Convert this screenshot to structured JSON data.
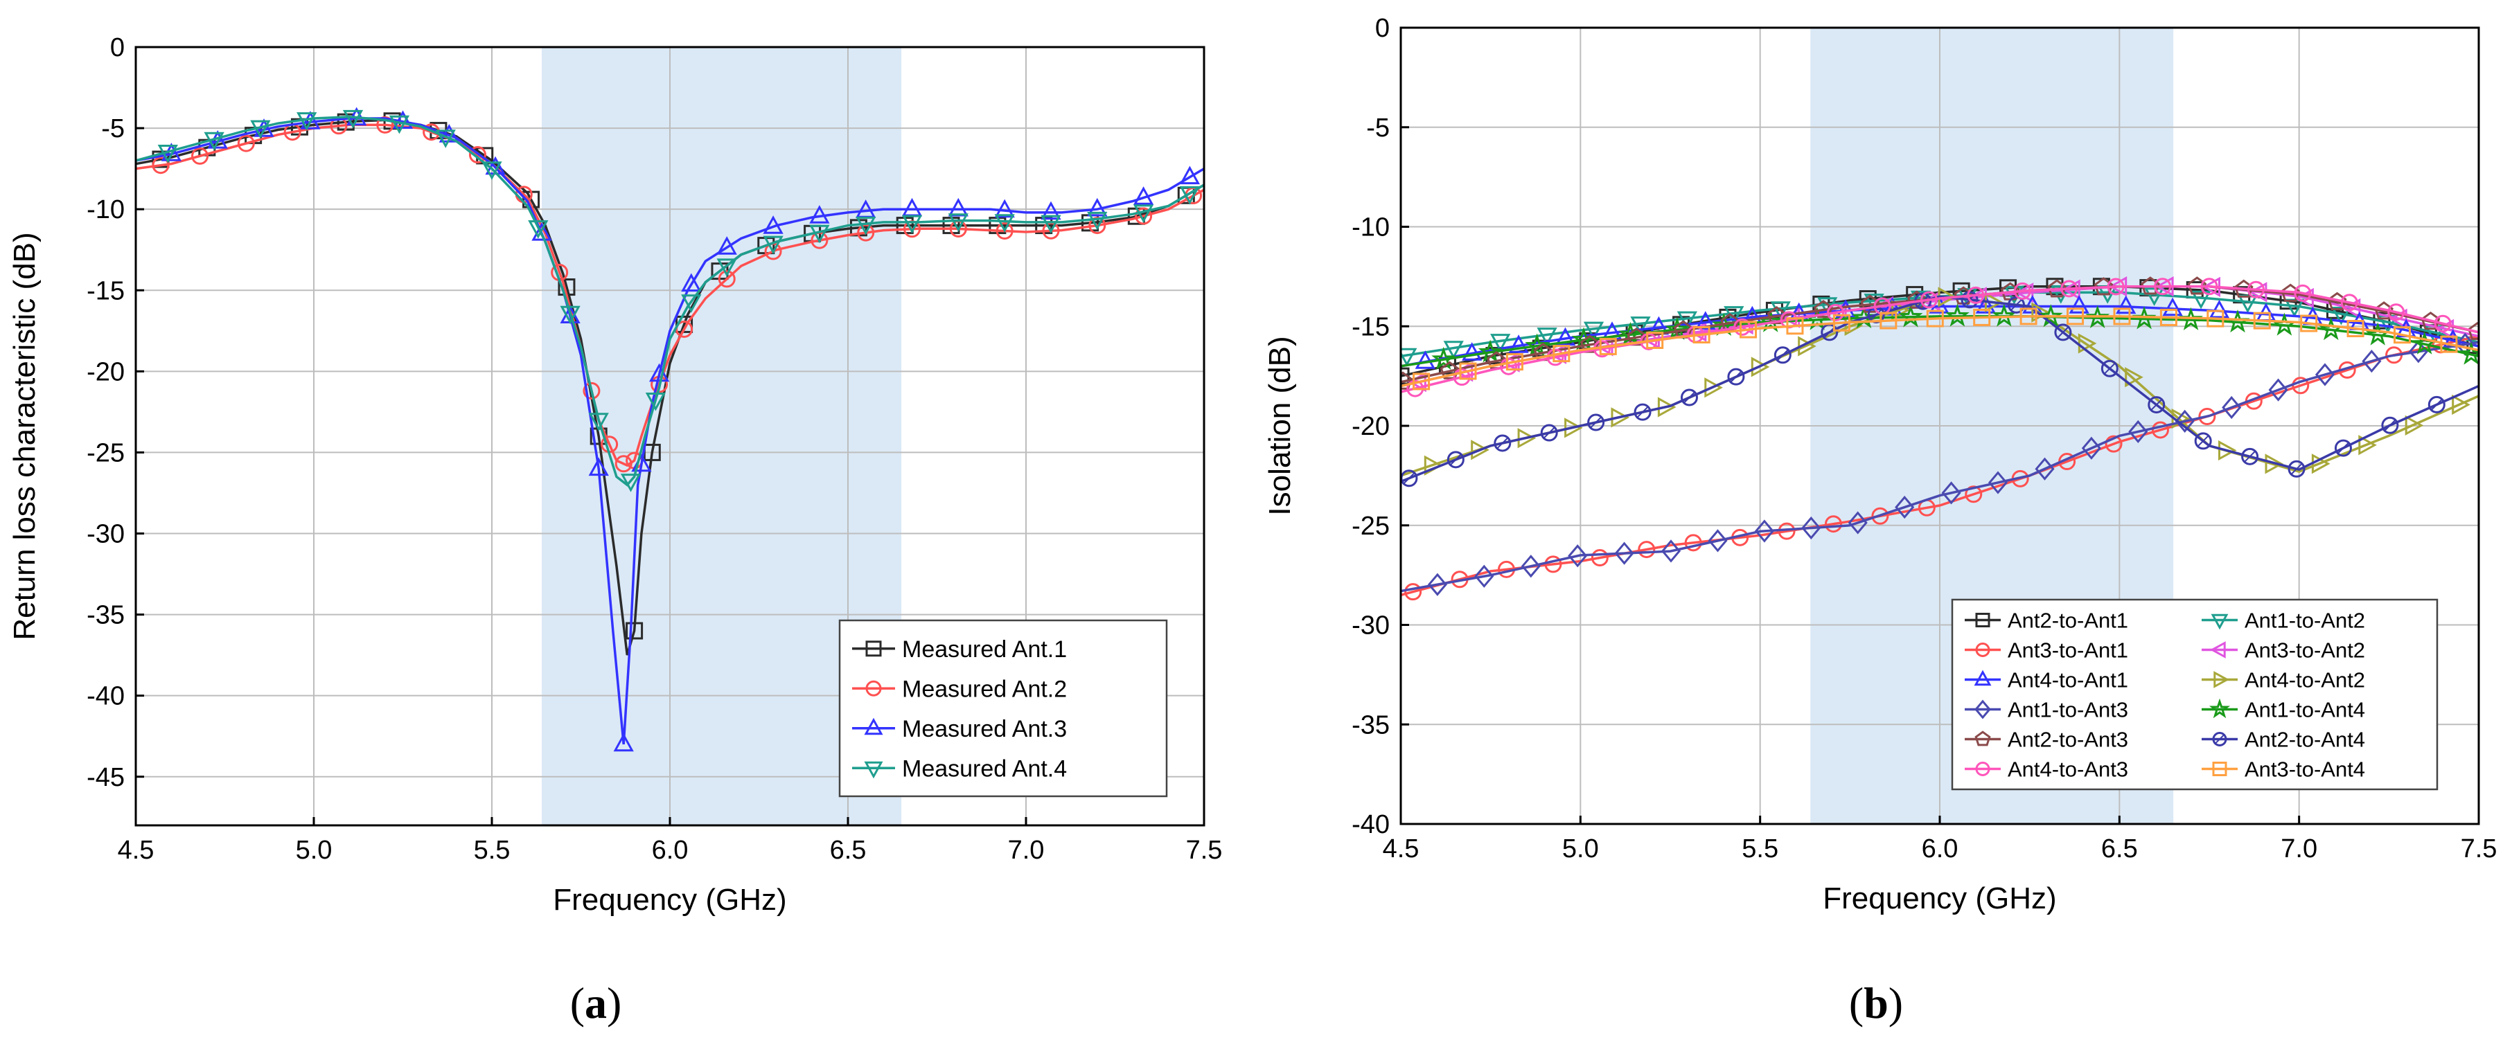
{
  "chart_data": [
    {
      "type": "line",
      "panel_label": {
        "open": "(",
        "letter": "a",
        "close": ")"
      },
      "xlabel": "Frequency (GHz)",
      "ylabel": "Return loss characteristic (dB)",
      "xlim": [
        4.5,
        7.5
      ],
      "ylim": [
        -48,
        0
      ],
      "xticks": [
        4.5,
        5.0,
        5.5,
        6.0,
        6.5,
        7.0,
        7.5
      ],
      "xtick_labels": [
        "4.5",
        "5.0",
        "5.5",
        "6.0",
        "6.5",
        "7.0",
        "7.5"
      ],
      "yticks": [
        0,
        -5,
        -10,
        -15,
        -20,
        -25,
        -30,
        -35,
        -40,
        -45
      ],
      "ytick_labels": [
        "0",
        "-5",
        "-10",
        "-15",
        "-20",
        "-25",
        "-30",
        "-35",
        "-40",
        "-45"
      ],
      "grid": true,
      "shaded_band": [
        5.64,
        6.65
      ],
      "band_color": "#dbe9f6",
      "legend_position": "bottom-right",
      "series": [
        {
          "name": "Measured Ant.1",
          "color": "#2b2b2b",
          "marker": "square",
          "x": [
            4.5,
            4.6,
            4.7,
            4.8,
            4.9,
            5.0,
            5.1,
            5.2,
            5.3,
            5.4,
            5.5,
            5.6,
            5.65,
            5.7,
            5.75,
            5.8,
            5.85,
            5.88,
            5.9,
            5.92,
            5.95,
            6.0,
            6.05,
            6.1,
            6.2,
            6.3,
            6.4,
            6.5,
            6.6,
            6.7,
            6.8,
            6.9,
            7.0,
            7.1,
            7.2,
            7.3,
            7.4,
            7.5
          ],
          "y": [
            -7.2,
            -6.8,
            -6.2,
            -5.6,
            -5.1,
            -4.8,
            -4.6,
            -4.5,
            -4.8,
            -5.5,
            -7.0,
            -9.0,
            -11.0,
            -14.0,
            -18.0,
            -24.0,
            -32.0,
            -37.5,
            -36.0,
            -30.0,
            -25.0,
            -19.5,
            -16.5,
            -14.5,
            -12.8,
            -12.0,
            -11.5,
            -11.2,
            -11.0,
            -11.0,
            -11.0,
            -11.0,
            -11.0,
            -11.0,
            -10.8,
            -10.5,
            -9.8,
            -8.5
          ],
          "marker_x": [
            4.57,
            4.7,
            4.83,
            4.96,
            5.09,
            5.22,
            5.35,
            5.48,
            5.61,
            5.71,
            5.8,
            5.9,
            5.95,
            6.04,
            6.14,
            6.27,
            6.4,
            6.53,
            6.66,
            6.79,
            6.92,
            7.05,
            7.18,
            7.31,
            7.45
          ]
        },
        {
          "name": "Measured Ant.2",
          "color": "#ff5050",
          "marker": "circle",
          "x": [
            4.5,
            4.6,
            4.7,
            4.8,
            4.9,
            5.0,
            5.1,
            5.2,
            5.3,
            5.4,
            5.5,
            5.6,
            5.65,
            5.7,
            5.75,
            5.8,
            5.85,
            5.88,
            5.9,
            5.92,
            5.95,
            6.0,
            6.05,
            6.1,
            6.2,
            6.3,
            6.4,
            6.5,
            6.6,
            6.7,
            6.8,
            6.9,
            7.0,
            7.1,
            7.2,
            7.3,
            7.4,
            7.5
          ],
          "y": [
            -7.5,
            -7.2,
            -6.6,
            -6.0,
            -5.4,
            -5.0,
            -4.8,
            -4.8,
            -5.0,
            -5.8,
            -7.2,
            -9.3,
            -11.5,
            -14.5,
            -18.5,
            -23.0,
            -25.5,
            -25.8,
            -25.5,
            -24.0,
            -22.0,
            -19.0,
            -17.0,
            -15.5,
            -13.5,
            -12.5,
            -12.0,
            -11.6,
            -11.3,
            -11.2,
            -11.2,
            -11.3,
            -11.4,
            -11.3,
            -11.0,
            -10.6,
            -10.0,
            -8.8
          ],
          "marker_x": [
            4.57,
            4.68,
            4.81,
            4.94,
            5.07,
            5.2,
            5.33,
            5.46,
            5.59,
            5.69,
            5.78,
            5.83,
            5.87,
            5.9,
            5.97,
            6.04,
            6.16,
            6.29,
            6.42,
            6.55,
            6.68,
            6.81,
            6.94,
            7.07,
            7.2,
            7.33,
            7.47
          ]
        },
        {
          "name": "Measured Ant.3",
          "color": "#3333ff",
          "marker": "triangle-up",
          "x": [
            4.5,
            4.6,
            4.7,
            4.8,
            4.9,
            5.0,
            5.1,
            5.2,
            5.3,
            5.4,
            5.5,
            5.6,
            5.65,
            5.7,
            5.75,
            5.8,
            5.84,
            5.87,
            5.89,
            5.91,
            5.95,
            6.0,
            6.05,
            6.1,
            6.2,
            6.3,
            6.4,
            6.5,
            6.6,
            6.7,
            6.8,
            6.9,
            7.0,
            7.1,
            7.2,
            7.3,
            7.4,
            7.5
          ],
          "y": [
            -7.0,
            -6.6,
            -6.0,
            -5.4,
            -4.9,
            -4.6,
            -4.4,
            -4.4,
            -4.8,
            -5.6,
            -7.2,
            -9.5,
            -12.0,
            -15.0,
            -19.0,
            -26.0,
            -36.0,
            -43.0,
            -36.0,
            -27.0,
            -22.0,
            -17.5,
            -15.0,
            -13.2,
            -11.8,
            -11.0,
            -10.5,
            -10.2,
            -10.0,
            -10.0,
            -10.0,
            -10.0,
            -10.2,
            -10.2,
            -10.0,
            -9.5,
            -8.8,
            -7.5
          ],
          "marker_x": [
            4.6,
            4.73,
            4.86,
            4.99,
            5.12,
            5.25,
            5.38,
            5.51,
            5.64,
            5.72,
            5.8,
            5.87,
            5.92,
            5.97,
            6.06,
            6.16,
            6.29,
            6.42,
            6.55,
            6.68,
            6.81,
            6.94,
            7.07,
            7.2,
            7.33,
            7.46
          ]
        },
        {
          "name": "Measured Ant.4",
          "color": "#1f9e8e",
          "marker": "triangle-down",
          "x": [
            4.5,
            4.6,
            4.7,
            4.8,
            4.9,
            5.0,
            5.1,
            5.2,
            5.3,
            5.4,
            5.5,
            5.6,
            5.65,
            5.7,
            5.75,
            5.8,
            5.85,
            5.88,
            5.9,
            5.93,
            5.97,
            6.0,
            6.05,
            6.1,
            6.2,
            6.3,
            6.4,
            6.5,
            6.6,
            6.7,
            6.8,
            6.9,
            7.0,
            7.1,
            7.2,
            7.3,
            7.4,
            7.5
          ],
          "y": [
            -7.0,
            -6.4,
            -5.8,
            -5.2,
            -4.7,
            -4.4,
            -4.3,
            -4.5,
            -4.9,
            -5.8,
            -7.5,
            -9.8,
            -12.0,
            -15.0,
            -18.5,
            -23.0,
            -26.5,
            -27.0,
            -26.5,
            -24.0,
            -21.0,
            -18.0,
            -16.0,
            -14.5,
            -12.8,
            -12.0,
            -11.5,
            -11.0,
            -10.8,
            -10.8,
            -10.7,
            -10.7,
            -10.8,
            -10.8,
            -10.6,
            -10.3,
            -9.8,
            -8.5
          ],
          "marker_x": [
            4.59,
            4.72,
            4.85,
            4.98,
            5.11,
            5.24,
            5.37,
            5.5,
            5.63,
            5.72,
            5.8,
            5.89,
            5.96,
            6.06,
            6.16,
            6.29,
            6.42,
            6.55,
            6.68,
            6.81,
            6.94,
            7.07,
            7.2,
            7.33,
            7.46
          ]
        }
      ]
    },
    {
      "type": "line",
      "panel_label": {
        "open": "(",
        "letter": "b",
        "close": ")"
      },
      "xlabel": "Frequency (GHz)",
      "ylabel": "Isolation (dB)",
      "xlim": [
        4.5,
        7.5
      ],
      "ylim": [
        -40,
        0
      ],
      "xticks": [
        4.5,
        5.0,
        5.5,
        6.0,
        6.5,
        7.0,
        7.5
      ],
      "xtick_labels": [
        "4.5",
        "5.0",
        "5.5",
        "6.0",
        "6.5",
        "7.0",
        "7.5"
      ],
      "yticks": [
        0,
        -5,
        -10,
        -15,
        -20,
        -25,
        -30,
        -35,
        -40
      ],
      "ytick_labels": [
        "0",
        "-5",
        "-10",
        "-15",
        "-20",
        "-25",
        "-30",
        "-35",
        "-40"
      ],
      "grid": true,
      "shaded_band": [
        5.64,
        6.65
      ],
      "band_color": "#dbe9f6",
      "legend_position": "bottom-right",
      "legend_columns": 2,
      "series": [
        {
          "name": "Ant2-to-Ant1",
          "color": "#2b2b2b",
          "marker": "square",
          "x": [
            4.5,
            4.75,
            5.0,
            5.25,
            5.5,
            5.75,
            6.0,
            6.25,
            6.5,
            6.75,
            7.0,
            7.25,
            7.5
          ],
          "y": [
            -17.5,
            -16.5,
            -15.8,
            -15.0,
            -14.3,
            -13.7,
            -13.3,
            -13.0,
            -13.0,
            -13.2,
            -13.8,
            -14.8,
            -16.0
          ],
          "marker_step": 0.13
        },
        {
          "name": "Ant1-to-Ant2",
          "color": "#1f9e8e",
          "marker": "triangle-down",
          "x": [
            4.5,
            4.75,
            5.0,
            5.25,
            5.5,
            5.75,
            6.0,
            6.25,
            6.5,
            6.75,
            7.0,
            7.25,
            7.5
          ],
          "y": [
            -16.5,
            -15.8,
            -15.2,
            -14.7,
            -14.2,
            -13.8,
            -13.5,
            -13.3,
            -13.3,
            -13.6,
            -14.0,
            -14.8,
            -15.8
          ],
          "marker_step": 0.13
        },
        {
          "name": "Ant3-to-Ant1",
          "color": "#ff5050",
          "marker": "circle",
          "x": [
            4.5,
            4.75,
            5.0,
            5.25,
            5.5,
            5.75,
            6.0,
            6.25,
            6.5,
            6.75,
            7.0,
            7.25,
            7.5
          ],
          "y": [
            -28.5,
            -27.3,
            -26.8,
            -26.0,
            -25.5,
            -24.8,
            -24.0,
            -22.5,
            -20.8,
            -19.5,
            -18.0,
            -16.5,
            -15.5
          ],
          "marker_step": 0.13
        },
        {
          "name": "Ant3-to-Ant2",
          "color": "#e055e0",
          "marker": "triangle-left",
          "x": [
            4.5,
            4.75,
            5.0,
            5.25,
            5.5,
            5.75,
            6.0,
            6.25,
            6.5,
            6.75,
            7.0,
            7.25,
            7.5
          ],
          "y": [
            -18.0,
            -17.0,
            -16.2,
            -15.5,
            -14.8,
            -14.2,
            -13.7,
            -13.3,
            -13.0,
            -13.0,
            -13.5,
            -14.5,
            -15.5
          ],
          "marker_step": 0.13
        },
        {
          "name": "Ant4-to-Ant1",
          "color": "#3333ff",
          "marker": "triangle-up",
          "x": [
            4.5,
            4.75,
            5.0,
            5.25,
            5.5,
            5.75,
            6.0,
            6.25,
            6.5,
            6.75,
            7.0,
            7.25,
            7.5
          ],
          "y": [
            -17.0,
            -16.2,
            -15.5,
            -15.0,
            -14.5,
            -14.2,
            -14.0,
            -14.0,
            -14.0,
            -14.2,
            -14.5,
            -15.0,
            -16.0
          ],
          "marker_step": 0.13
        },
        {
          "name": "Ant4-to-Ant2",
          "color": "#a8a83a",
          "marker": "triangle-right",
          "x": [
            4.5,
            4.75,
            5.0,
            5.25,
            5.5,
            5.75,
            6.0,
            6.25,
            6.5,
            6.75,
            7.0,
            7.25,
            7.5
          ],
          "y": [
            -22.5,
            -21.0,
            -20.0,
            -19.0,
            -17.0,
            -15.0,
            -13.5,
            -14.0,
            -17.0,
            -21.0,
            -22.3,
            -20.5,
            -18.5
          ],
          "marker_step": 0.13
        },
        {
          "name": "Ant1-to-Ant3",
          "color": "#4a4ab0",
          "marker": "diamond",
          "x": [
            4.5,
            4.75,
            5.0,
            5.25,
            5.5,
            5.75,
            6.0,
            6.25,
            6.5,
            6.75,
            7.0,
            7.25,
            7.5
          ],
          "y": [
            -28.3,
            -27.5,
            -26.5,
            -26.3,
            -25.3,
            -25.0,
            -23.5,
            -22.5,
            -20.5,
            -19.5,
            -17.8,
            -16.5,
            -15.8
          ],
          "marker_step": 0.13
        },
        {
          "name": "Ant1-to-Ant4",
          "color": "#1a9a1a",
          "marker": "star",
          "x": [
            4.5,
            4.75,
            5.0,
            5.25,
            5.5,
            5.75,
            6.0,
            6.25,
            6.5,
            6.75,
            7.0,
            7.25,
            7.5
          ],
          "y": [
            -17.0,
            -16.3,
            -15.7,
            -15.2,
            -14.8,
            -14.6,
            -14.5,
            -14.5,
            -14.6,
            -14.7,
            -15.0,
            -15.5,
            -16.5
          ],
          "marker_step": 0.13
        },
        {
          "name": "Ant2-to-Ant3",
          "color": "#8b4a4a",
          "marker": "pentagon",
          "x": [
            4.5,
            4.75,
            5.0,
            5.25,
            5.5,
            5.75,
            6.0,
            6.25,
            6.5,
            6.75,
            7.0,
            7.25,
            7.5
          ],
          "y": [
            -17.8,
            -16.8,
            -16.0,
            -15.3,
            -14.6,
            -14.0,
            -13.6,
            -13.2,
            -13.0,
            -13.0,
            -13.4,
            -14.3,
            -15.3
          ],
          "marker_step": 0.13
        },
        {
          "name": "Ant2-to-Ant4",
          "color": "#3a3aa8",
          "marker": "circle-dot",
          "x": [
            4.5,
            4.75,
            5.0,
            5.25,
            5.5,
            5.75,
            6.0,
            6.25,
            6.5,
            6.75,
            7.0,
            7.25,
            7.5
          ],
          "y": [
            -22.8,
            -21.0,
            -20.0,
            -19.0,
            -17.0,
            -14.8,
            -13.5,
            -14.0,
            -17.5,
            -21.0,
            -22.2,
            -20.0,
            -18.0
          ],
          "marker_step": 0.13
        },
        {
          "name": "Ant4-to-Ant3",
          "color": "#ff55bb",
          "marker": "circle",
          "x": [
            4.5,
            4.75,
            5.0,
            5.25,
            5.5,
            5.75,
            6.0,
            6.25,
            6.5,
            6.75,
            7.0,
            7.25,
            7.5
          ],
          "y": [
            -18.3,
            -17.2,
            -16.3,
            -15.6,
            -14.9,
            -14.2,
            -13.6,
            -13.2,
            -13.0,
            -13.0,
            -13.3,
            -14.2,
            -15.3
          ],
          "marker_step": 0.13
        },
        {
          "name": "Ant3-to-Ant4",
          "color": "#ffa040",
          "marker": "square",
          "x": [
            4.5,
            4.75,
            5.0,
            5.25,
            5.5,
            5.75,
            6.0,
            6.25,
            6.5,
            6.75,
            7.0,
            7.25,
            7.5
          ],
          "y": [
            -18.0,
            -17.0,
            -16.2,
            -15.6,
            -15.1,
            -14.8,
            -14.6,
            -14.5,
            -14.5,
            -14.6,
            -14.8,
            -15.3,
            -16.2
          ],
          "marker_step": 0.13
        }
      ]
    }
  ]
}
